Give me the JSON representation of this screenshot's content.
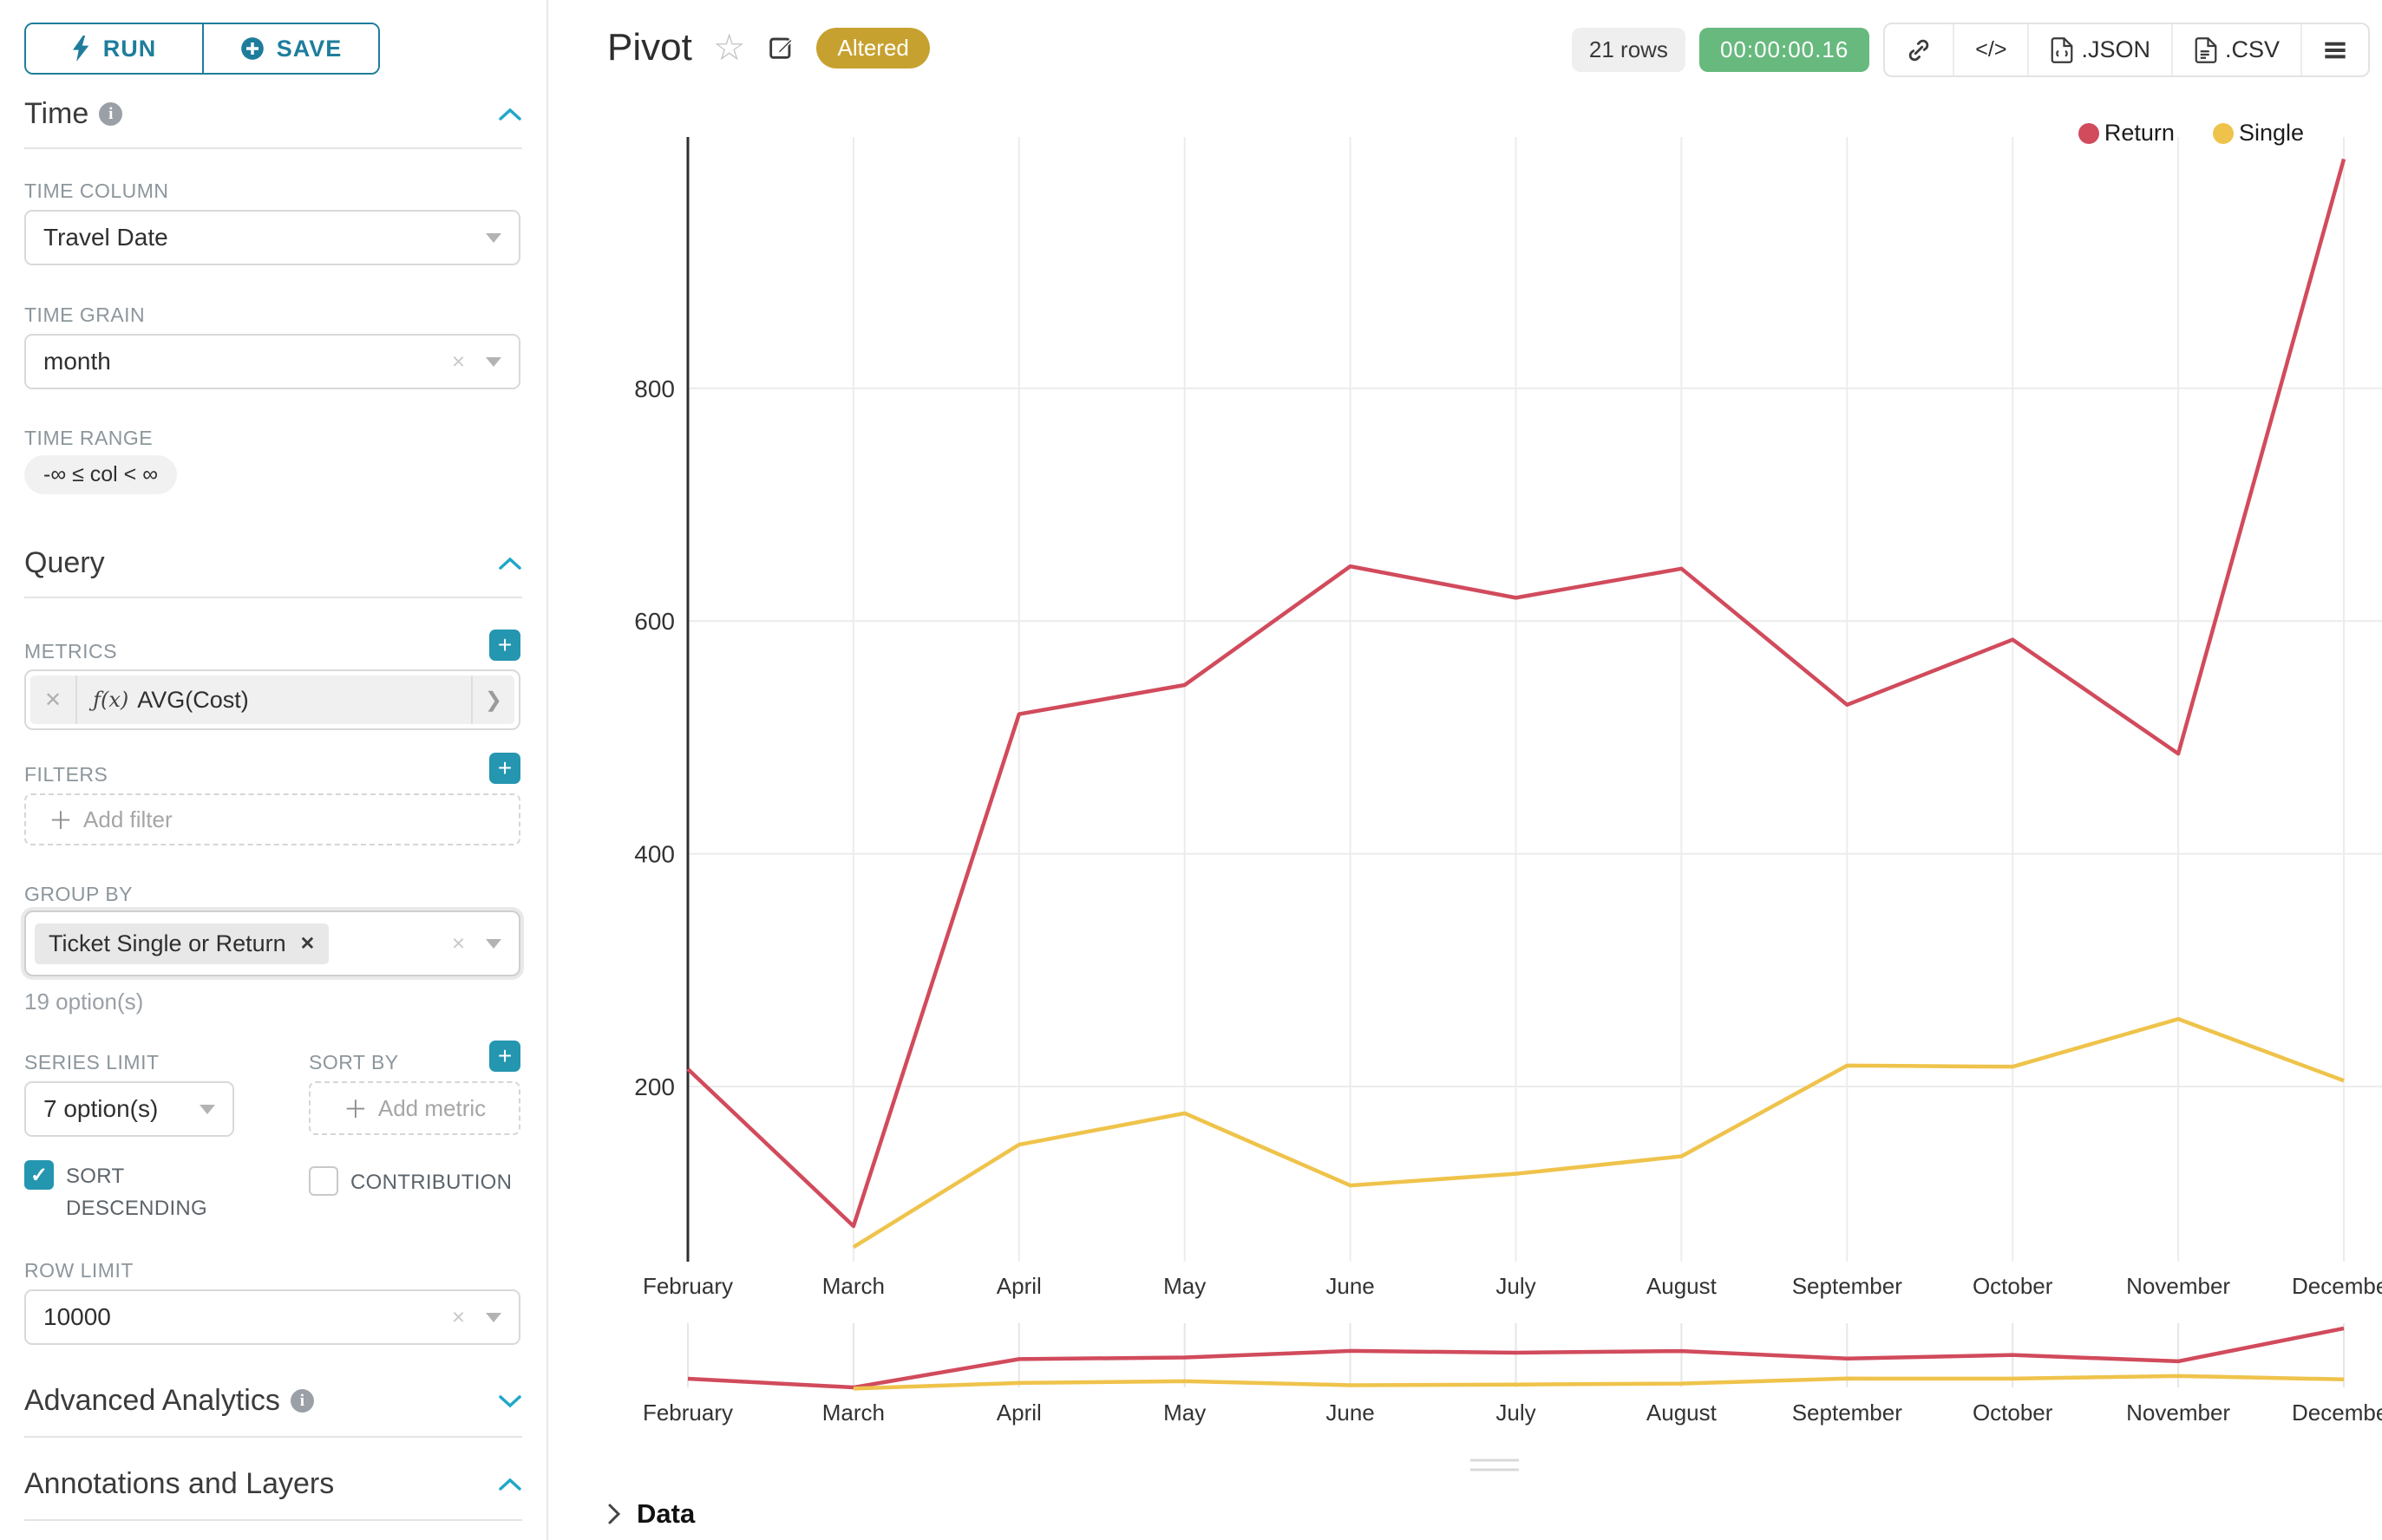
{
  "sidebar": {
    "run_label": "RUN",
    "save_label": "SAVE",
    "time": {
      "title": "Time",
      "time_column_label": "TIME COLUMN",
      "time_column_value": "Travel Date",
      "time_grain_label": "TIME GRAIN",
      "time_grain_value": "month",
      "time_range_label": "TIME RANGE",
      "time_range_value": "-∞ ≤ col < ∞"
    },
    "query": {
      "title": "Query",
      "metrics_label": "METRICS",
      "metric_prefix": "ƒ(x)",
      "metric_value": "AVG(Cost)",
      "filters_label": "FILTERS",
      "add_filter_label": "Add filter",
      "group_by_label": "GROUP BY",
      "group_by_value": "Ticket Single or Return",
      "group_by_hint": "19 option(s)",
      "series_limit_label": "SERIES LIMIT",
      "series_limit_value": "7 option(s)",
      "sort_by_label": "SORT BY",
      "add_metric_label": "Add metric",
      "sort_descending_label": "SORT DESCENDING",
      "contribution_label": "CONTRIBUTION",
      "row_limit_label": "ROW LIMIT",
      "row_limit_value": "10000"
    },
    "advanced_analytics_title": "Advanced Analytics",
    "annotations_title": "Annotations and Layers"
  },
  "header": {
    "title": "Pivot",
    "altered_badge": "Altered",
    "rows_badge": "21 rows",
    "timer_badge": "00:00:00.16",
    "code_label": "</>",
    "export_json_label": ".JSON",
    "export_csv_label": ".CSV"
  },
  "chart_data": {
    "type": "line",
    "title": "Pivot",
    "categories": [
      "February",
      "March",
      "April",
      "May",
      "June",
      "July",
      "August",
      "September",
      "October",
      "November",
      "December"
    ],
    "series": [
      {
        "name": "Return",
        "color": "#d14b5c",
        "values": [
          215,
          80,
          520,
          545,
          647,
          620,
          645,
          528,
          584,
          486,
          997
        ]
      },
      {
        "name": "Single",
        "color": "#efc34b",
        "values": [
          null,
          62,
          150,
          177,
          115,
          125,
          140,
          218,
          217,
          258,
          205
        ]
      }
    ],
    "ylim": [
      0,
      1050
    ],
    "yticks": [
      200,
      400,
      600,
      800
    ],
    "grid": true,
    "legend_position": "top-right",
    "has_navigator_minichart": true
  },
  "data_panel": {
    "title": "Data"
  }
}
